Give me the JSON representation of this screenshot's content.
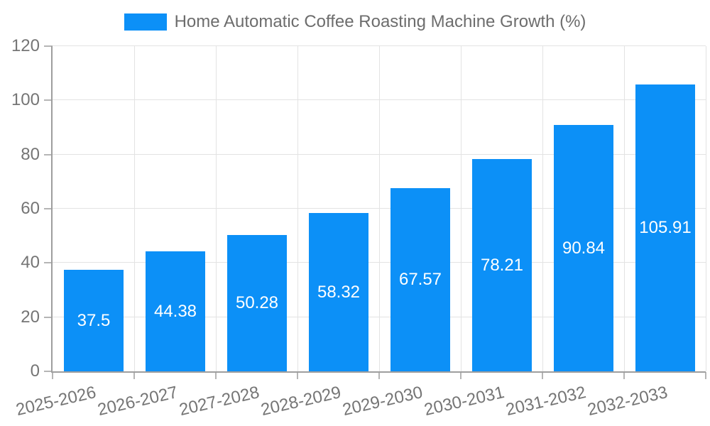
{
  "chart_data": {
    "type": "bar",
    "title": "Home Automatic Coffee Roasting Machine Growth (%)",
    "categories": [
      "2025-2026",
      "2026-2027",
      "2027-2028",
      "2028-2029",
      "2029-2030",
      "2030-2031",
      "2031-2032",
      "2032-2033"
    ],
    "values": [
      37.5,
      44.38,
      50.28,
      58.32,
      67.57,
      78.21,
      90.84,
      105.91
    ],
    "value_labels": [
      "37.5",
      "44.38",
      "50.28",
      "58.32",
      "67.57",
      "78.21",
      "90.84",
      "105.91"
    ],
    "xlabel": "",
    "ylabel": "",
    "ylim": [
      0,
      120
    ],
    "yticks": [
      0,
      20,
      40,
      60,
      80,
      100,
      120
    ],
    "grid": true,
    "legend_position": "top-center",
    "colors": {
      "bar": "#0c90f7",
      "axis_text": "#757575",
      "legend_text": "#6d6d6d",
      "value_text": "#ffffff",
      "grid_line": "#e3e3e3",
      "axis_line": "#9e9e9e",
      "background": "#ffffff"
    }
  }
}
